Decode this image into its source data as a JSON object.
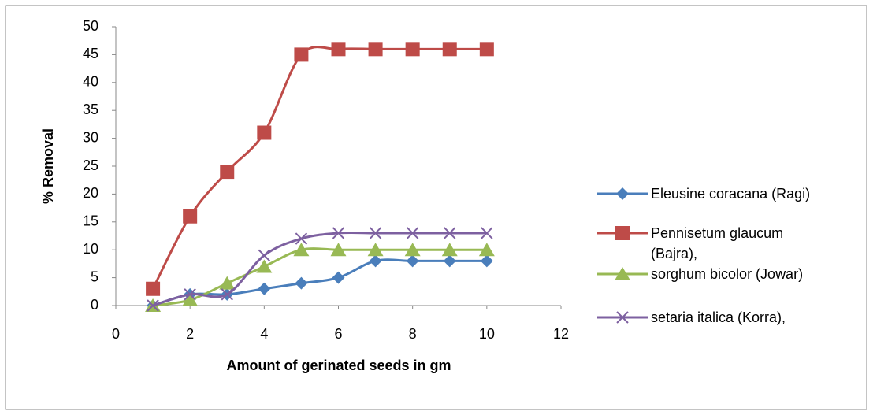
{
  "chart_data": {
    "type": "line",
    "x_label": "Amount of gerinated seeds in gm",
    "y_label": "% Removal",
    "x": [
      1,
      2,
      3,
      4,
      5,
      6,
      7,
      8,
      9,
      10
    ],
    "series": [
      {
        "name": "Eleusine coracana (Ragi)",
        "color": "#4a7ebb",
        "marker": "diamond",
        "values": [
          0,
          2,
          2,
          3,
          4,
          5,
          8,
          8,
          8,
          8
        ]
      },
      {
        "name": "Pennisetum glaucum (Bajra),",
        "color": "#be4b48",
        "marker": "square",
        "values": [
          3,
          16,
          24,
          31,
          45,
          46,
          46,
          46,
          46,
          46
        ]
      },
      {
        "name": "sorghum bicolor (Jowar)",
        "color": "#98b954",
        "marker": "triangle",
        "values": [
          0,
          1,
          4,
          7,
          10,
          10,
          10,
          10,
          10,
          10
        ]
      },
      {
        "name": "setaria italica (Korra),",
        "color": "#7d60a0",
        "marker": "x",
        "values": [
          0,
          2,
          2,
          9,
          12,
          13,
          13,
          13,
          13,
          13
        ]
      }
    ],
    "xlim": [
      0,
      12
    ],
    "xticks": [
      0,
      2,
      4,
      6,
      8,
      10,
      12
    ],
    "ylim": [
      0,
      50
    ],
    "yticks": [
      0,
      5,
      10,
      15,
      20,
      25,
      30,
      35,
      40,
      45,
      50
    ],
    "smooth": true,
    "grid": false,
    "legend": "right"
  }
}
